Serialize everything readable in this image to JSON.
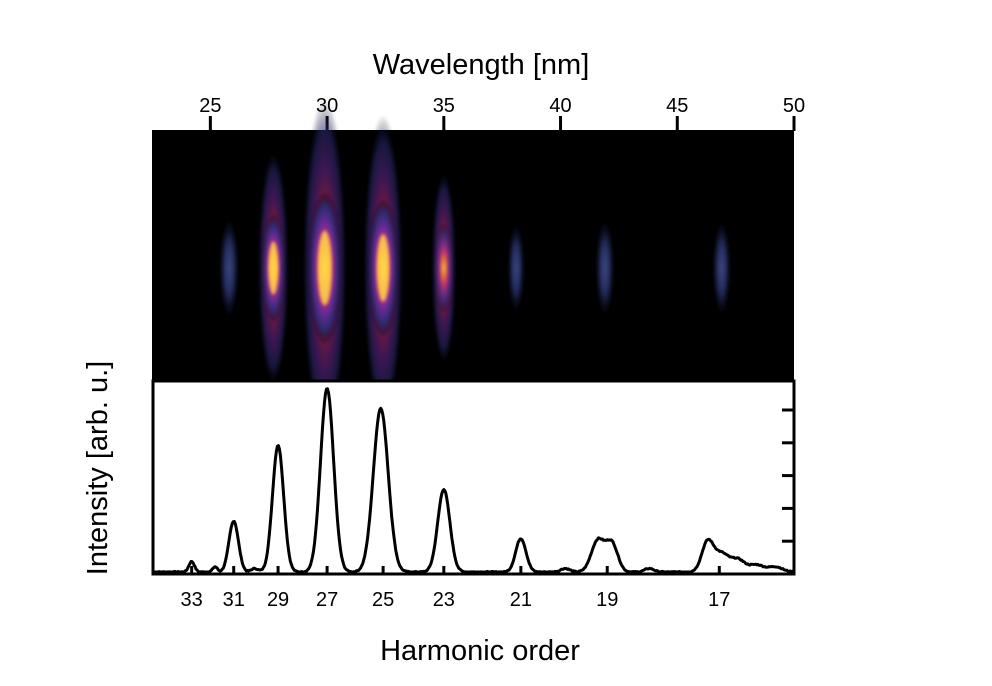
{
  "chart_data": [
    {
      "type": "heatmap",
      "title": "",
      "xlabel": "Wavelength [nm]",
      "x_ticks": [
        25,
        30,
        35,
        40,
        45,
        50
      ],
      "xlim": [
        22.5,
        50
      ],
      "colormap": [
        "#000000",
        "#1a1a4a",
        "#3a3a8c",
        "#7a2a9a",
        "#d03070",
        "#ff8a1a",
        "#ffe840"
      ],
      "spots": [
        {
          "wavelength": 25.8,
          "intensity": 0.25
        },
        {
          "wavelength": 27.7,
          "intensity": 0.55
        },
        {
          "wavelength": 29.9,
          "intensity": 1.0
        },
        {
          "wavelength": 32.4,
          "intensity": 0.85
        },
        {
          "wavelength": 35.0,
          "intensity": 0.35
        },
        {
          "wavelength": 38.1,
          "intensity": 0.15
        },
        {
          "wavelength": 41.9,
          "intensity": 0.22
        },
        {
          "wavelength": 46.9,
          "intensity": 0.2
        }
      ]
    },
    {
      "type": "line",
      "title": "",
      "xlabel": "Harmonic order",
      "ylabel": "Intensity [arb. u.]",
      "x_ticks": [
        "33",
        "31",
        "29",
        "27",
        "25",
        "23",
        "21",
        "19",
        "17"
      ],
      "x_tick_wavelengths": [
        24.2,
        26.0,
        27.9,
        30.0,
        32.4,
        35.0,
        38.3,
        42.0,
        46.8
      ],
      "ylim": [
        0,
        1.05
      ],
      "y_tick_count": 5,
      "series": [
        {
          "peaks": [
            {
              "wavelength": 24.2,
              "height": 0.06,
              "width": 0.12
            },
            {
              "wavelength": 25.2,
              "height": 0.03,
              "width": 0.1
            },
            {
              "wavelength": 26.0,
              "height": 0.29,
              "width": 0.2
            },
            {
              "wavelength": 26.9,
              "height": 0.02,
              "width": 0.15
            },
            {
              "wavelength": 27.9,
              "height": 0.72,
              "width": 0.24
            },
            {
              "wavelength": 30.0,
              "height": 1.04,
              "width": 0.28
            },
            {
              "wavelength": 32.3,
              "height": 0.93,
              "width": 0.32
            },
            {
              "wavelength": 35.0,
              "height": 0.47,
              "width": 0.26
            },
            {
              "wavelength": 38.3,
              "height": 0.19,
              "width": 0.22
            },
            {
              "wavelength": 40.2,
              "height": 0.02,
              "width": 0.2
            },
            {
              "wavelength": 41.6,
              "height": 0.18,
              "width": 0.28
            },
            {
              "wavelength": 42.2,
              "height": 0.16,
              "width": 0.25
            },
            {
              "wavelength": 43.8,
              "height": 0.02,
              "width": 0.2
            },
            {
              "wavelength": 46.3,
              "height": 0.17,
              "width": 0.25
            },
            {
              "wavelength": 46.9,
              "height": 0.1,
              "width": 0.3
            },
            {
              "wavelength": 47.6,
              "height": 0.07,
              "width": 0.3
            },
            {
              "wavelength": 48.4,
              "height": 0.04,
              "width": 0.3
            },
            {
              "wavelength": 49.2,
              "height": 0.03,
              "width": 0.3
            }
          ]
        }
      ]
    }
  ]
}
